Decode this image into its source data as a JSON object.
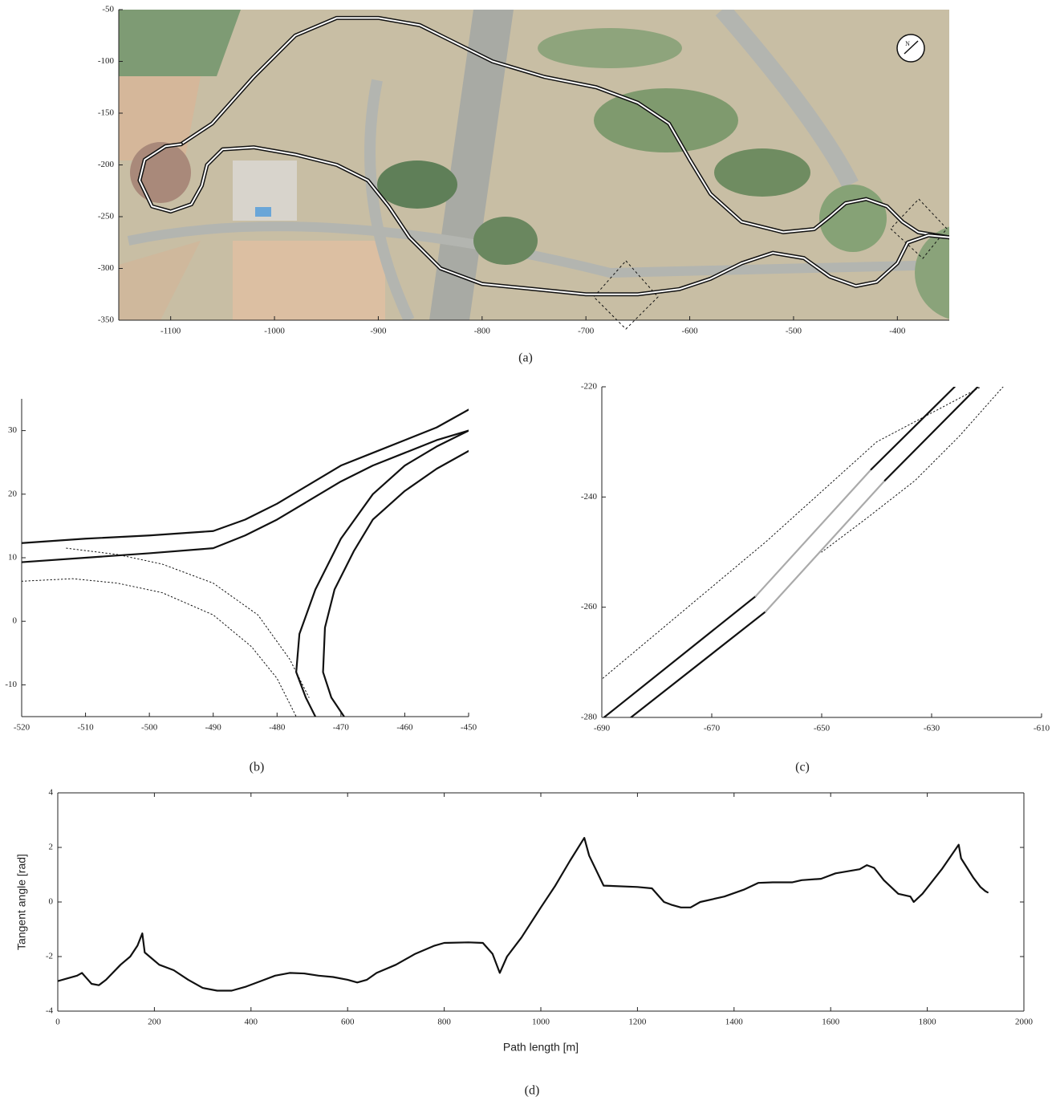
{
  "chart_data": [
    {
      "type": "line",
      "caption": "(a)",
      "annotation": "N",
      "xlim": [
        -1150,
        -350
      ],
      "ylim": [
        -350,
        -50
      ],
      "xticks": [
        -1100,
        -1000,
        -900,
        -800,
        -700,
        -600,
        -500,
        -400
      ],
      "yticks": [
        -350,
        -300,
        -250,
        -200,
        -150,
        -100,
        -50
      ],
      "series": [
        {
          "color": "#111111",
          "style": "double",
          "x": [
            -1090,
            -1060,
            -1020,
            -980,
            -940,
            -900,
            -860,
            -830,
            -790,
            -740,
            -690,
            -650,
            -620,
            -600,
            -580,
            -550,
            -510,
            -480,
            -465,
            -450,
            -430,
            -410,
            -395,
            -380,
            -350
          ],
          "values": [
            -180,
            -160,
            -115,
            -75,
            -58,
            -58,
            -65,
            -80,
            -100,
            -115,
            -125,
            -140,
            -160,
            -195,
            -228,
            -255,
            -265,
            -262,
            -250,
            -237,
            -233,
            -240,
            -255,
            -265,
            -270
          ]
        },
        {
          "color": "#111111",
          "style": "double",
          "x": [
            -1090,
            -1105,
            -1125,
            -1130,
            -1118,
            -1100,
            -1080,
            -1070,
            -1065,
            -1050,
            -1020,
            -980,
            -940,
            -910,
            -890,
            -870,
            -840,
            -800,
            -750,
            -700,
            -650,
            -610,
            -580,
            -550,
            -520,
            -490,
            -465,
            -440,
            -420,
            -400,
            -390,
            -370,
            -350
          ],
          "values": [
            -180,
            -182,
            -195,
            -215,
            -240,
            -245,
            -238,
            -220,
            -200,
            -185,
            -183,
            -190,
            -200,
            -215,
            -240,
            -270,
            -300,
            -315,
            -320,
            -325,
            -325,
            -320,
            -310,
            -295,
            -285,
            -290,
            -308,
            -317,
            -313,
            -295,
            -275,
            -268,
            -270
          ]
        }
      ]
    },
    {
      "type": "line",
      "caption": "(b)",
      "xlim": [
        -520,
        -450
      ],
      "ylim": [
        -15,
        35
      ],
      "xticks": [
        -520,
        -510,
        -500,
        -490,
        -480,
        -470,
        -460,
        -450
      ],
      "yticks": [
        -10,
        0,
        10,
        20,
        30
      ],
      "series": [
        {
          "color": "#111111",
          "style": "solid",
          "x": [
            -520,
            -510,
            -500,
            -490,
            -485,
            -480,
            -475,
            -470,
            -465,
            -460,
            -455,
            -450
          ],
          "values": [
            12.3,
            13,
            13.5,
            14.2,
            16,
            18.5,
            21.5,
            24.5,
            26.5,
            28.5,
            30.5,
            33.3
          ]
        },
        {
          "color": "#111111",
          "style": "solid",
          "x": [
            -520,
            -510,
            -500,
            -490,
            -485,
            -480,
            -475,
            -470,
            -465,
            -460,
            -455,
            -450
          ],
          "values": [
            9.3,
            10,
            10.7,
            11.5,
            13.5,
            16,
            19,
            22,
            24.5,
            26.5,
            28.5,
            30
          ]
        },
        {
          "color": "#111111",
          "style": "solid",
          "x": [
            -450,
            -455,
            -460,
            -465,
            -470,
            -474,
            -476.5,
            -477,
            -475.5,
            -474
          ],
          "values": [
            30,
            27.5,
            24.5,
            20,
            13,
            5,
            -2,
            -8,
            -12,
            -15
          ]
        },
        {
          "color": "#111111",
          "style": "solid",
          "x": [
            -450,
            -455,
            -460,
            -465,
            -468,
            -471,
            -472.5,
            -472.8,
            -471.5,
            -469.5
          ],
          "values": [
            26.8,
            24,
            20.5,
            16,
            11,
            5,
            -1,
            -8,
            -12,
            -15
          ]
        },
        {
          "color": "#111111",
          "style": "dotted",
          "x": [
            -520,
            -512,
            -505,
            -498,
            -490,
            -484,
            -480,
            -477
          ],
          "values": [
            6.3,
            6.7,
            6,
            4.5,
            1,
            -4,
            -9,
            -15
          ]
        },
        {
          "color": "#111111",
          "style": "dotted",
          "x": [
            -513,
            -505,
            -498,
            -490,
            -483,
            -478,
            -475
          ],
          "values": [
            11.5,
            10.5,
            9,
            6,
            1,
            -6,
            -12
          ]
        }
      ]
    },
    {
      "type": "line",
      "caption": "(c)",
      "xlim": [
        -690,
        -610
      ],
      "ylim": [
        -280,
        -220
      ],
      "xticks": [
        -690,
        -670,
        -650,
        -630,
        -610
      ],
      "yticks": [
        -280,
        -260,
        -240,
        -220
      ],
      "series": [
        {
          "color": "#111111",
          "style": "solid",
          "x": [
            -689.6,
            -662
          ],
          "values": [
            -280,
            -258
          ]
        },
        {
          "color": "#aaaaaa",
          "style": "solid",
          "x": [
            -662,
            -641
          ],
          "values": [
            -258,
            -235
          ]
        },
        {
          "color": "#111111",
          "style": "solid",
          "x": [
            -641,
            -625.8
          ],
          "values": [
            -235,
            -220
          ]
        },
        {
          "color": "#111111",
          "style": "solid",
          "x": [
            -684.7,
            -660.2
          ],
          "values": [
            -280,
            -260.8
          ]
        },
        {
          "color": "#aaaaaa",
          "style": "solid",
          "x": [
            -660.2,
            -638.5
          ],
          "values": [
            -260.8,
            -237
          ]
        },
        {
          "color": "#111111",
          "style": "solid",
          "x": [
            -638.5,
            -621.6
          ],
          "values": [
            -237,
            -220
          ]
        },
        {
          "color": "#111111",
          "style": "dotted",
          "x": [
            -690.3,
            -660,
            -640,
            -621
          ],
          "values": [
            -273.3,
            -248,
            -230,
            -220
          ]
        },
        {
          "color": "#111111",
          "style": "dotted",
          "x": [
            -617,
            -625,
            -633,
            -642,
            -650
          ],
          "values": [
            -220,
            -229,
            -237,
            -244,
            -250
          ]
        }
      ]
    },
    {
      "type": "line",
      "caption": "(d)",
      "x_label": "Path length [m]",
      "y_label": "Tangent angle [rad]",
      "xlim": [
        0,
        2000
      ],
      "ylim": [
        -4,
        4
      ],
      "xticks": [
        0,
        200,
        400,
        600,
        800,
        1000,
        1200,
        1400,
        1600,
        1800,
        2000
      ],
      "yticks": [
        -4,
        -2,
        0,
        2,
        4
      ],
      "series": [
        {
          "color": "#111111",
          "style": "solid",
          "x": [
            0,
            20,
            40,
            50,
            60,
            70,
            85,
            100,
            130,
            150,
            165,
            175,
            180,
            190,
            210,
            240,
            270,
            300,
            330,
            360,
            390,
            420,
            450,
            480,
            510,
            540,
            570,
            600,
            620,
            640,
            660,
            700,
            740,
            780,
            800,
            850,
            880,
            900,
            915,
            930,
            960,
            1000,
            1030,
            1060,
            1090,
            1100,
            1130,
            1200,
            1230,
            1255,
            1270,
            1290,
            1310,
            1330,
            1380,
            1420,
            1450,
            1480,
            1520,
            1540,
            1580,
            1610,
            1660,
            1675,
            1690,
            1710,
            1740,
            1765,
            1772,
            1790,
            1830,
            1865,
            1870,
            1895,
            1910,
            1920,
            1925
          ],
          "values": [
            -2.9,
            -2.8,
            -2.7,
            -2.6,
            -2.8,
            -3.0,
            -3.05,
            -2.85,
            -2.3,
            -2.0,
            -1.6,
            -1.15,
            -1.85,
            -2.0,
            -2.3,
            -2.5,
            -2.85,
            -3.15,
            -3.25,
            -3.25,
            -3.1,
            -2.9,
            -2.7,
            -2.6,
            -2.62,
            -2.7,
            -2.75,
            -2.85,
            -2.95,
            -2.85,
            -2.6,
            -2.3,
            -1.9,
            -1.6,
            -1.5,
            -1.48,
            -1.5,
            -1.9,
            -2.6,
            -2.0,
            -1.3,
            -0.2,
            0.6,
            1.5,
            2.35,
            1.7,
            0.6,
            0.55,
            0.5,
            0.0,
            -0.1,
            -0.2,
            -0.2,
            0.0,
            0.2,
            0.45,
            0.7,
            0.72,
            0.72,
            0.8,
            0.85,
            1.05,
            1.2,
            1.35,
            1.25,
            0.8,
            0.3,
            0.2,
            0.0,
            0.3,
            1.2,
            2.1,
            1.6,
            0.9,
            0.55,
            0.4,
            0.35
          ]
        }
      ]
    }
  ]
}
